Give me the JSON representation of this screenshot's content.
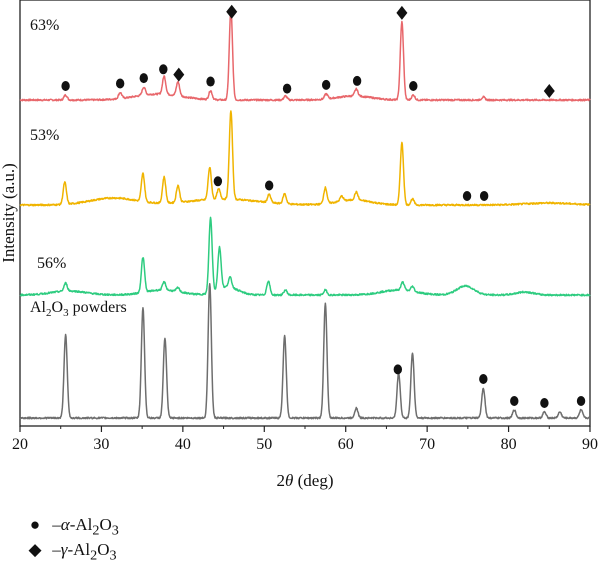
{
  "chart_data": {
    "type": "line",
    "xlabel_prefix": "2",
    "xlabel_symbol": "θ",
    "xlabel_suffix": " (deg)",
    "ylabel": "Intensity (a.u.)",
    "xlim": [
      20,
      90
    ],
    "xticks": [
      20,
      30,
      40,
      50,
      60,
      70,
      80,
      90
    ],
    "grid": false,
    "series": [
      {
        "name": "63%",
        "color": "#e8676b",
        "baseline": 100,
        "peaks": [
          [
            25.6,
            5
          ],
          [
            32.3,
            6
          ],
          [
            35.2,
            8
          ],
          [
            37.7,
            18
          ],
          [
            39.4,
            14
          ],
          [
            43.4,
            9
          ],
          [
            45.9,
            90
          ],
          [
            52.6,
            4
          ],
          [
            57.6,
            5
          ],
          [
            61.3,
            7
          ],
          [
            66.9,
            78
          ],
          [
            68.3,
            5
          ],
          [
            76.9,
            3
          ]
        ],
        "broad": [
          [
            37,
            4,
            6
          ],
          [
            61,
            3,
            4
          ]
        ]
      },
      {
        "name": "53%",
        "color": "#f0b400",
        "baseline": 205,
        "peaks": [
          [
            25.5,
            22
          ],
          [
            35.1,
            28
          ],
          [
            37.7,
            26
          ],
          [
            39.4,
            17
          ],
          [
            43.3,
            32
          ],
          [
            44.4,
            10
          ],
          [
            45.9,
            88
          ],
          [
            50.6,
            8
          ],
          [
            52.5,
            10
          ],
          [
            57.5,
            16
          ],
          [
            59.5,
            5
          ],
          [
            61.3,
            8
          ],
          [
            66.9,
            62
          ],
          [
            68.2,
            6
          ]
        ],
        "broad": [
          [
            31.5,
            4,
            7
          ],
          [
            45,
            6,
            6
          ],
          [
            61,
            3,
            5
          ],
          [
            85,
            4,
            2
          ]
        ]
      },
      {
        "name": "56%",
        "color": "#2ecc80",
        "baseline": 295,
        "peaks": [
          [
            25.6,
            8
          ],
          [
            35.1,
            35
          ],
          [
            37.7,
            8
          ],
          [
            39.4,
            4
          ],
          [
            43.4,
            75
          ],
          [
            44.5,
            42
          ],
          [
            45.8,
            10
          ],
          [
            50.5,
            14
          ],
          [
            52.6,
            5
          ],
          [
            57.5,
            5
          ],
          [
            67.0,
            8
          ],
          [
            68.2,
            5
          ]
        ],
        "broad": [
          [
            26,
            3,
            4
          ],
          [
            37.5,
            3,
            5
          ],
          [
            45.5,
            1.8,
            8
          ],
          [
            66.5,
            3,
            5
          ],
          [
            74.7,
            1.5,
            9
          ],
          [
            82,
            1.5,
            3
          ]
        ]
      },
      {
        "name": "Al",
        "label_sub": "2",
        "label_mid": "O",
        "label_sub2": "3",
        "label_tail": " powders",
        "color": "#6e6e6e",
        "baseline": 418,
        "peaks": [
          [
            25.6,
            83
          ],
          [
            35.1,
            110
          ],
          [
            37.8,
            80
          ],
          [
            43.3,
            135
          ],
          [
            52.5,
            82
          ],
          [
            57.5,
            115
          ],
          [
            61.3,
            10
          ],
          [
            66.5,
            45
          ],
          [
            68.2,
            65
          ],
          [
            76.9,
            30
          ],
          [
            80.7,
            8
          ],
          [
            84.4,
            6
          ],
          [
            86.3,
            6
          ],
          [
            88.9,
            8
          ]
        ],
        "broad": []
      }
    ],
    "markers": [
      {
        "series": 0,
        "type": "circle",
        "x": [
          25.6,
          32.3,
          35.2,
          37.6,
          43.4,
          52.8,
          57.6,
          61.4,
          68.3
        ]
      },
      {
        "series": 0,
        "type": "diamond",
        "x": [
          39.5,
          46.0,
          66.9,
          85.0
        ]
      },
      {
        "series": 1,
        "type": "circle",
        "x": [
          44.3,
          50.6,
          74.9,
          77.0
        ]
      },
      {
        "series": 3,
        "type": "circle",
        "x": [
          66.4,
          76.9,
          80.7,
          84.4,
          88.9
        ]
      }
    ]
  },
  "legend": {
    "circle": {
      "prefix": "–",
      "greek": "α",
      "mid": "-Al",
      "sub1": "2",
      "o": "O",
      "sub2": "3"
    },
    "diamond": {
      "prefix": "–",
      "greek": "γ",
      "mid": "-Al",
      "sub1": "2",
      "o": "O",
      "sub2": "3"
    }
  }
}
